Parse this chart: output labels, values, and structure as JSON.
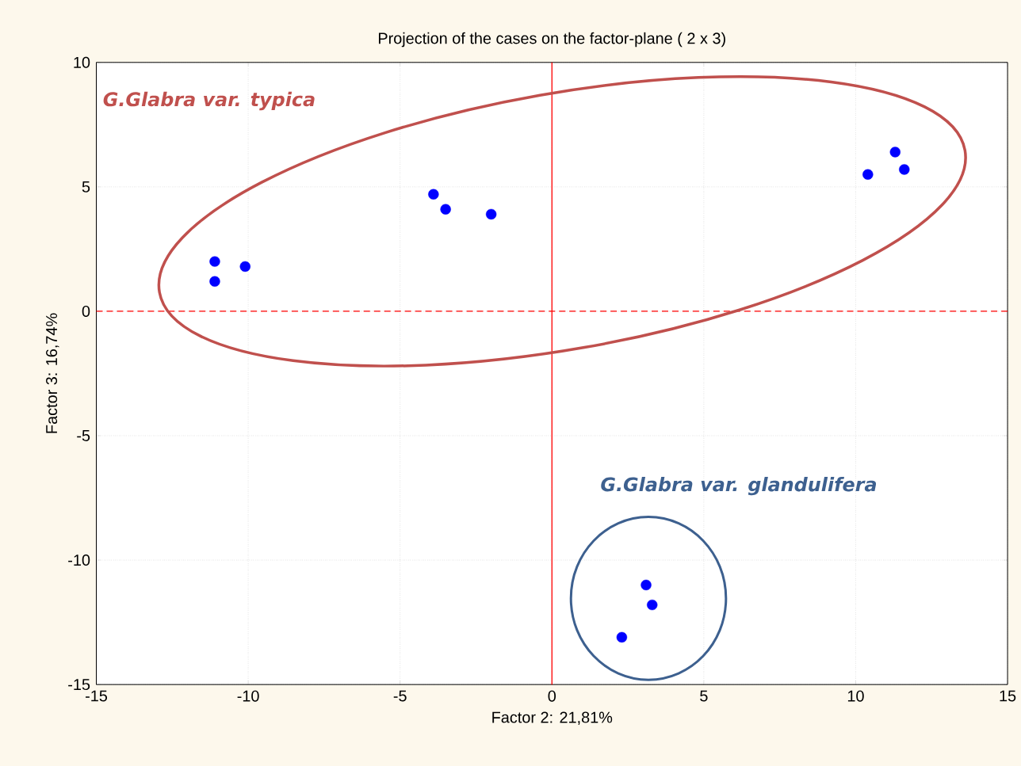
{
  "chart_data": {
    "type": "scatter",
    "title": "Projection of the cases on the factor-plane ( 2 x 3)",
    "xlabel": "Factor 2: 21,81%",
    "ylabel": "Factor 3: 16,74%",
    "x": [
      -11.1,
      -11.1,
      -10.1,
      -3.9,
      -3.5,
      -2.0,
      10.4,
      11.3,
      11.6,
      3.1,
      3.3,
      2.3
    ],
    "series": [
      {
        "color": "#0000ff",
        "values": [
          2.0,
          1.2,
          1.8,
          4.7,
          4.1,
          3.9,
          5.5,
          6.4,
          5.7,
          -11.0,
          -11.8,
          -13.1
        ]
      }
    ],
    "marker": "circle",
    "xlim": [
      -15,
      15
    ],
    "ylim": [
      -15,
      10
    ],
    "xticks": [
      -15,
      -10,
      -5,
      0,
      5,
      10,
      15
    ],
    "yticks": [
      -15,
      -10,
      -5,
      0,
      5,
      10
    ],
    "grid": true,
    "ref_lines": [
      {
        "axis": "x",
        "value": 0,
        "color": "#ff0000",
        "line_style": "solid"
      },
      {
        "axis": "y",
        "value": 0,
        "color": "#ff0000",
        "line_style": "dashed"
      }
    ],
    "annotations": [
      "*G.Glabra var. typica*",
      "*G.Glabra var. glandulifera*"
    ]
  }
}
